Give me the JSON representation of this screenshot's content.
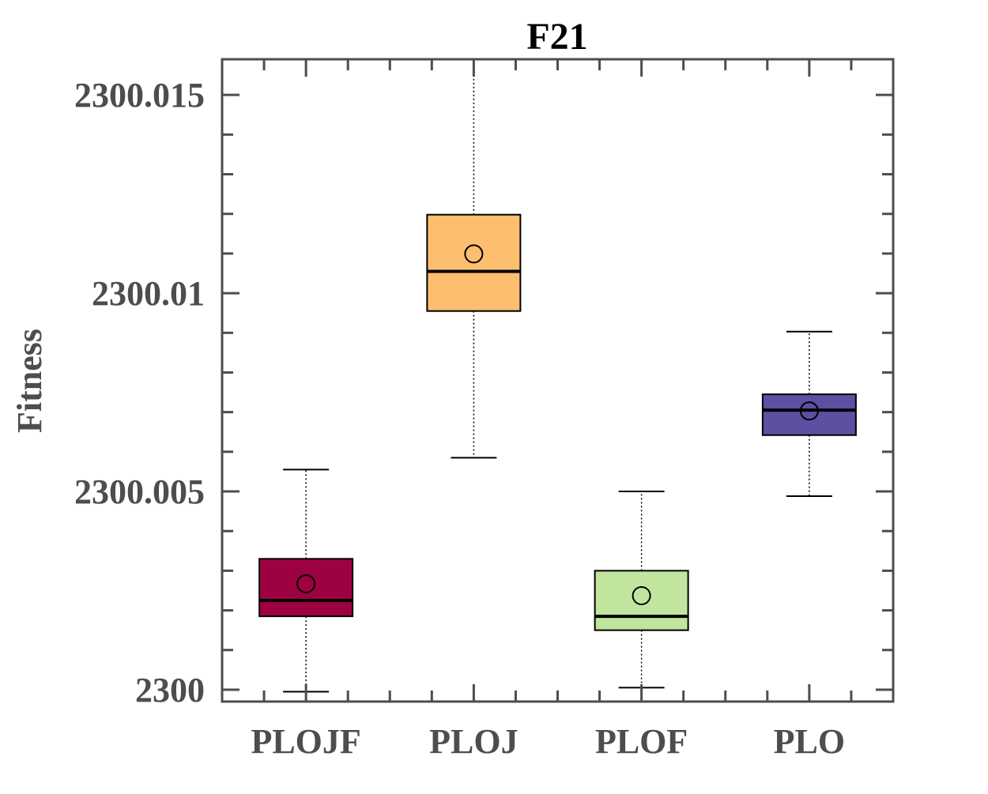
{
  "chart_data": {
    "type": "box",
    "title": "F21",
    "xlabel": "",
    "ylabel": "Fitness",
    "ylim": [
      2299.9997,
      2300.0159
    ],
    "yticks": [
      2300,
      2300.005,
      2300.01,
      2300.015
    ],
    "ytick_labels": [
      "2300",
      "2300.005",
      "2300.01",
      "2300.015"
    ],
    "categories": [
      "PLOJF",
      "PLOJ",
      "PLOF",
      "PLO"
    ],
    "grid": false,
    "boxes": [
      {
        "label": "PLOJF",
        "color": "#9E0142",
        "min": 2299.99995,
        "q1": 2300.00185,
        "median": 2300.00225,
        "q3": 2300.0033,
        "max": 2300.00555,
        "mean": 2300.00267
      },
      {
        "label": "PLOJ",
        "color": "#FDBE6F",
        "min": 2300.00585,
        "q1": 2300.00955,
        "median": 2300.01055,
        "q3": 2300.01198,
        "max": 2300.0159,
        "mean": 2300.01099
      },
      {
        "label": "PLOF",
        "color": "#C1E59E",
        "min": 2300.00005,
        "q1": 2300.0015,
        "median": 2300.00185,
        "q3": 2300.003,
        "max": 2300.005,
        "mean": 2300.00237
      },
      {
        "label": "PLO",
        "color": "#5E4FA2",
        "min": 2300.00488,
        "q1": 2300.00642,
        "median": 2300.00705,
        "q3": 2300.00745,
        "max": 2300.00903,
        "mean": 2300.00703
      }
    ]
  }
}
